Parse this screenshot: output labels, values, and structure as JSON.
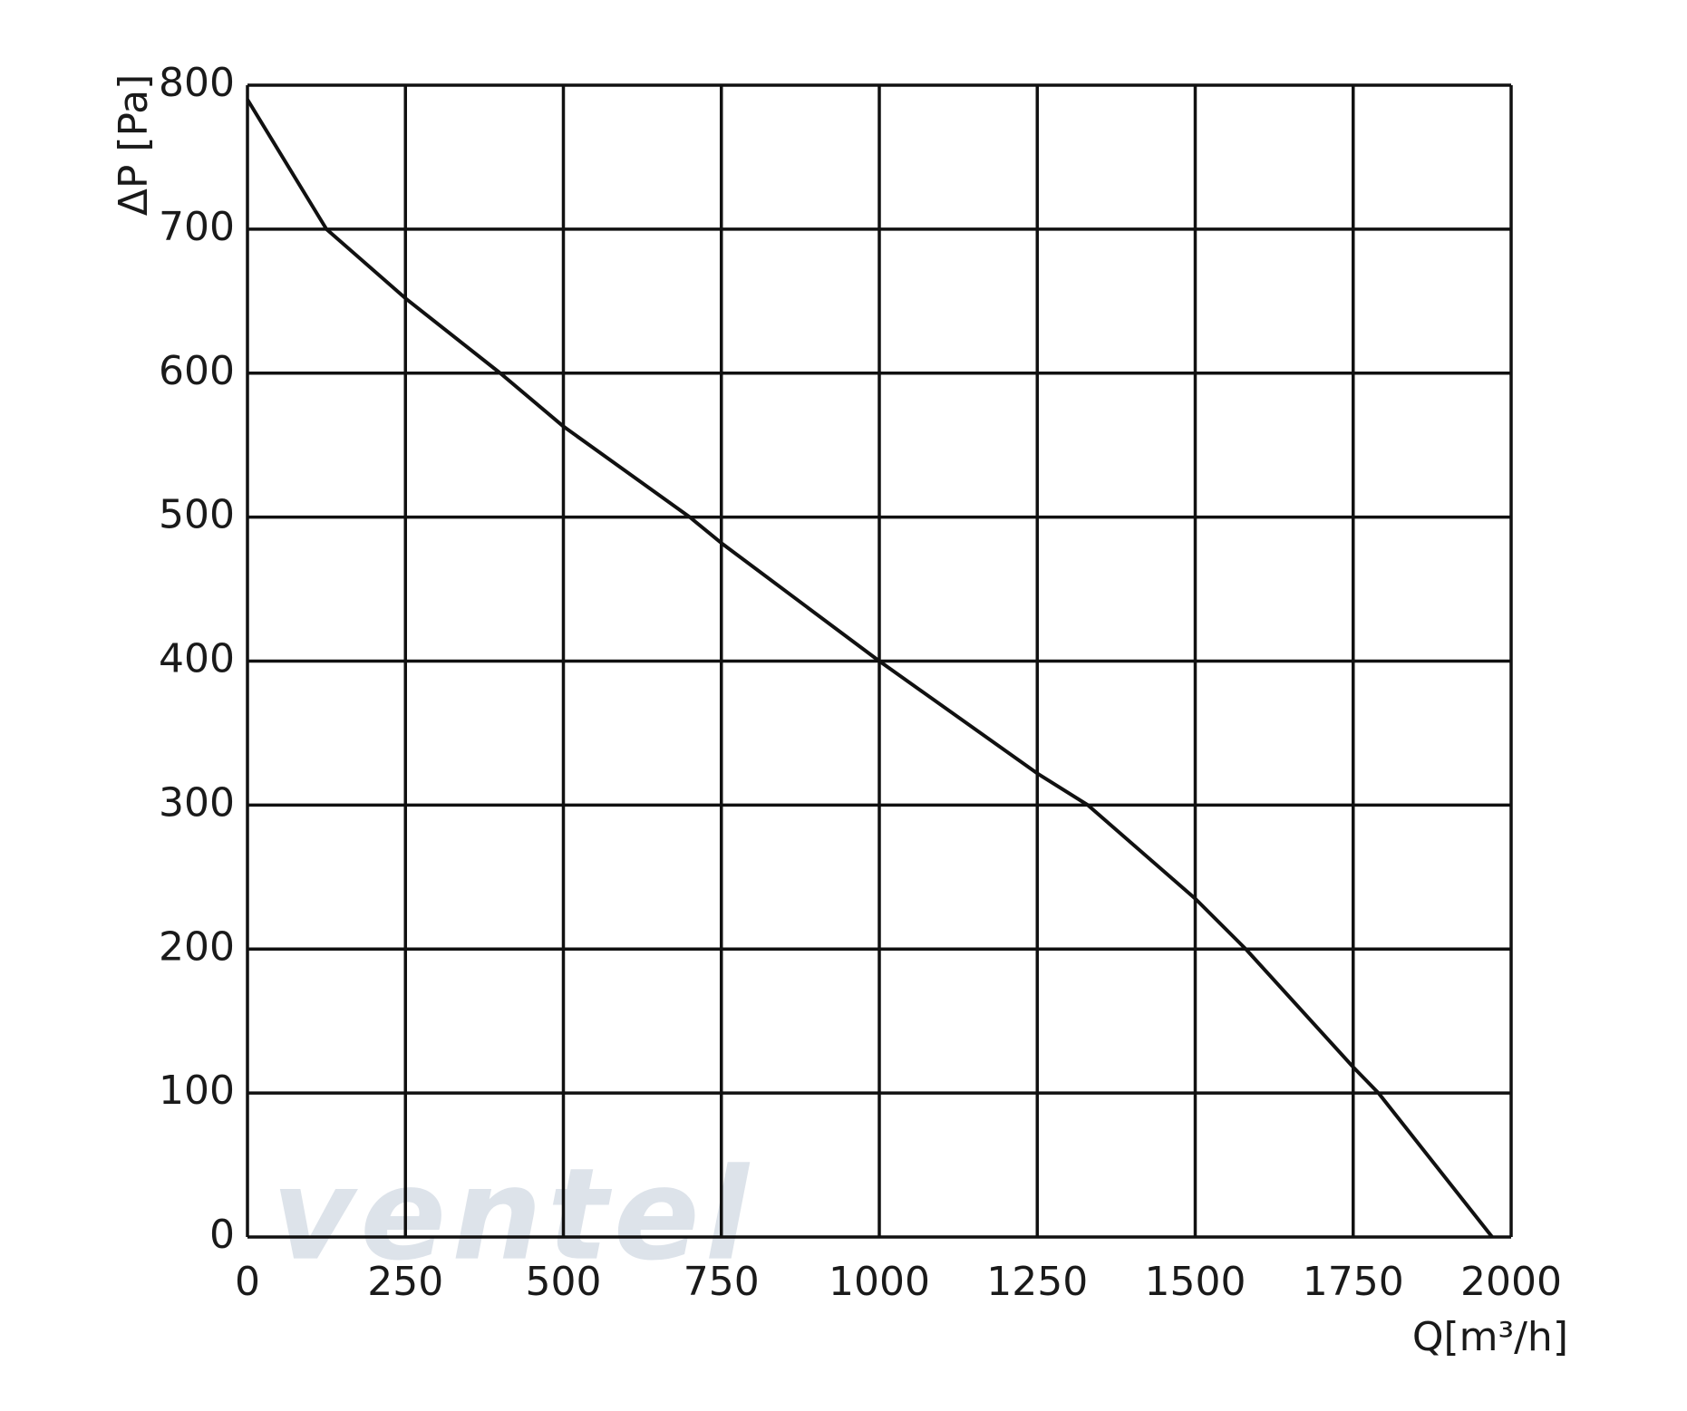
{
  "chart_data": {
    "type": "line",
    "x_label": "Q[m³/h]",
    "y_label": "ΔP [Pa]",
    "watermark": "ventel",
    "x": [
      0,
      125,
      250,
      400,
      500,
      700,
      750,
      1000,
      1250,
      1330,
      1500,
      1580,
      1750,
      1790,
      1970
    ],
    "series": [
      {
        "color": "#111111",
        "values": [
          790,
          700,
          652,
          600,
          563,
          500,
          482,
          400,
          322,
          300,
          235,
          200,
          118,
          100,
          0
        ]
      }
    ],
    "xlim": [
      0,
      2000
    ],
    "xticks": [
      0,
      250,
      500,
      750,
      1000,
      1250,
      1500,
      1750,
      2000
    ],
    "ylim": [
      0,
      800
    ],
    "yticks": [
      0,
      100,
      200,
      300,
      400,
      500,
      600,
      700,
      800
    ],
    "grid": true
  }
}
